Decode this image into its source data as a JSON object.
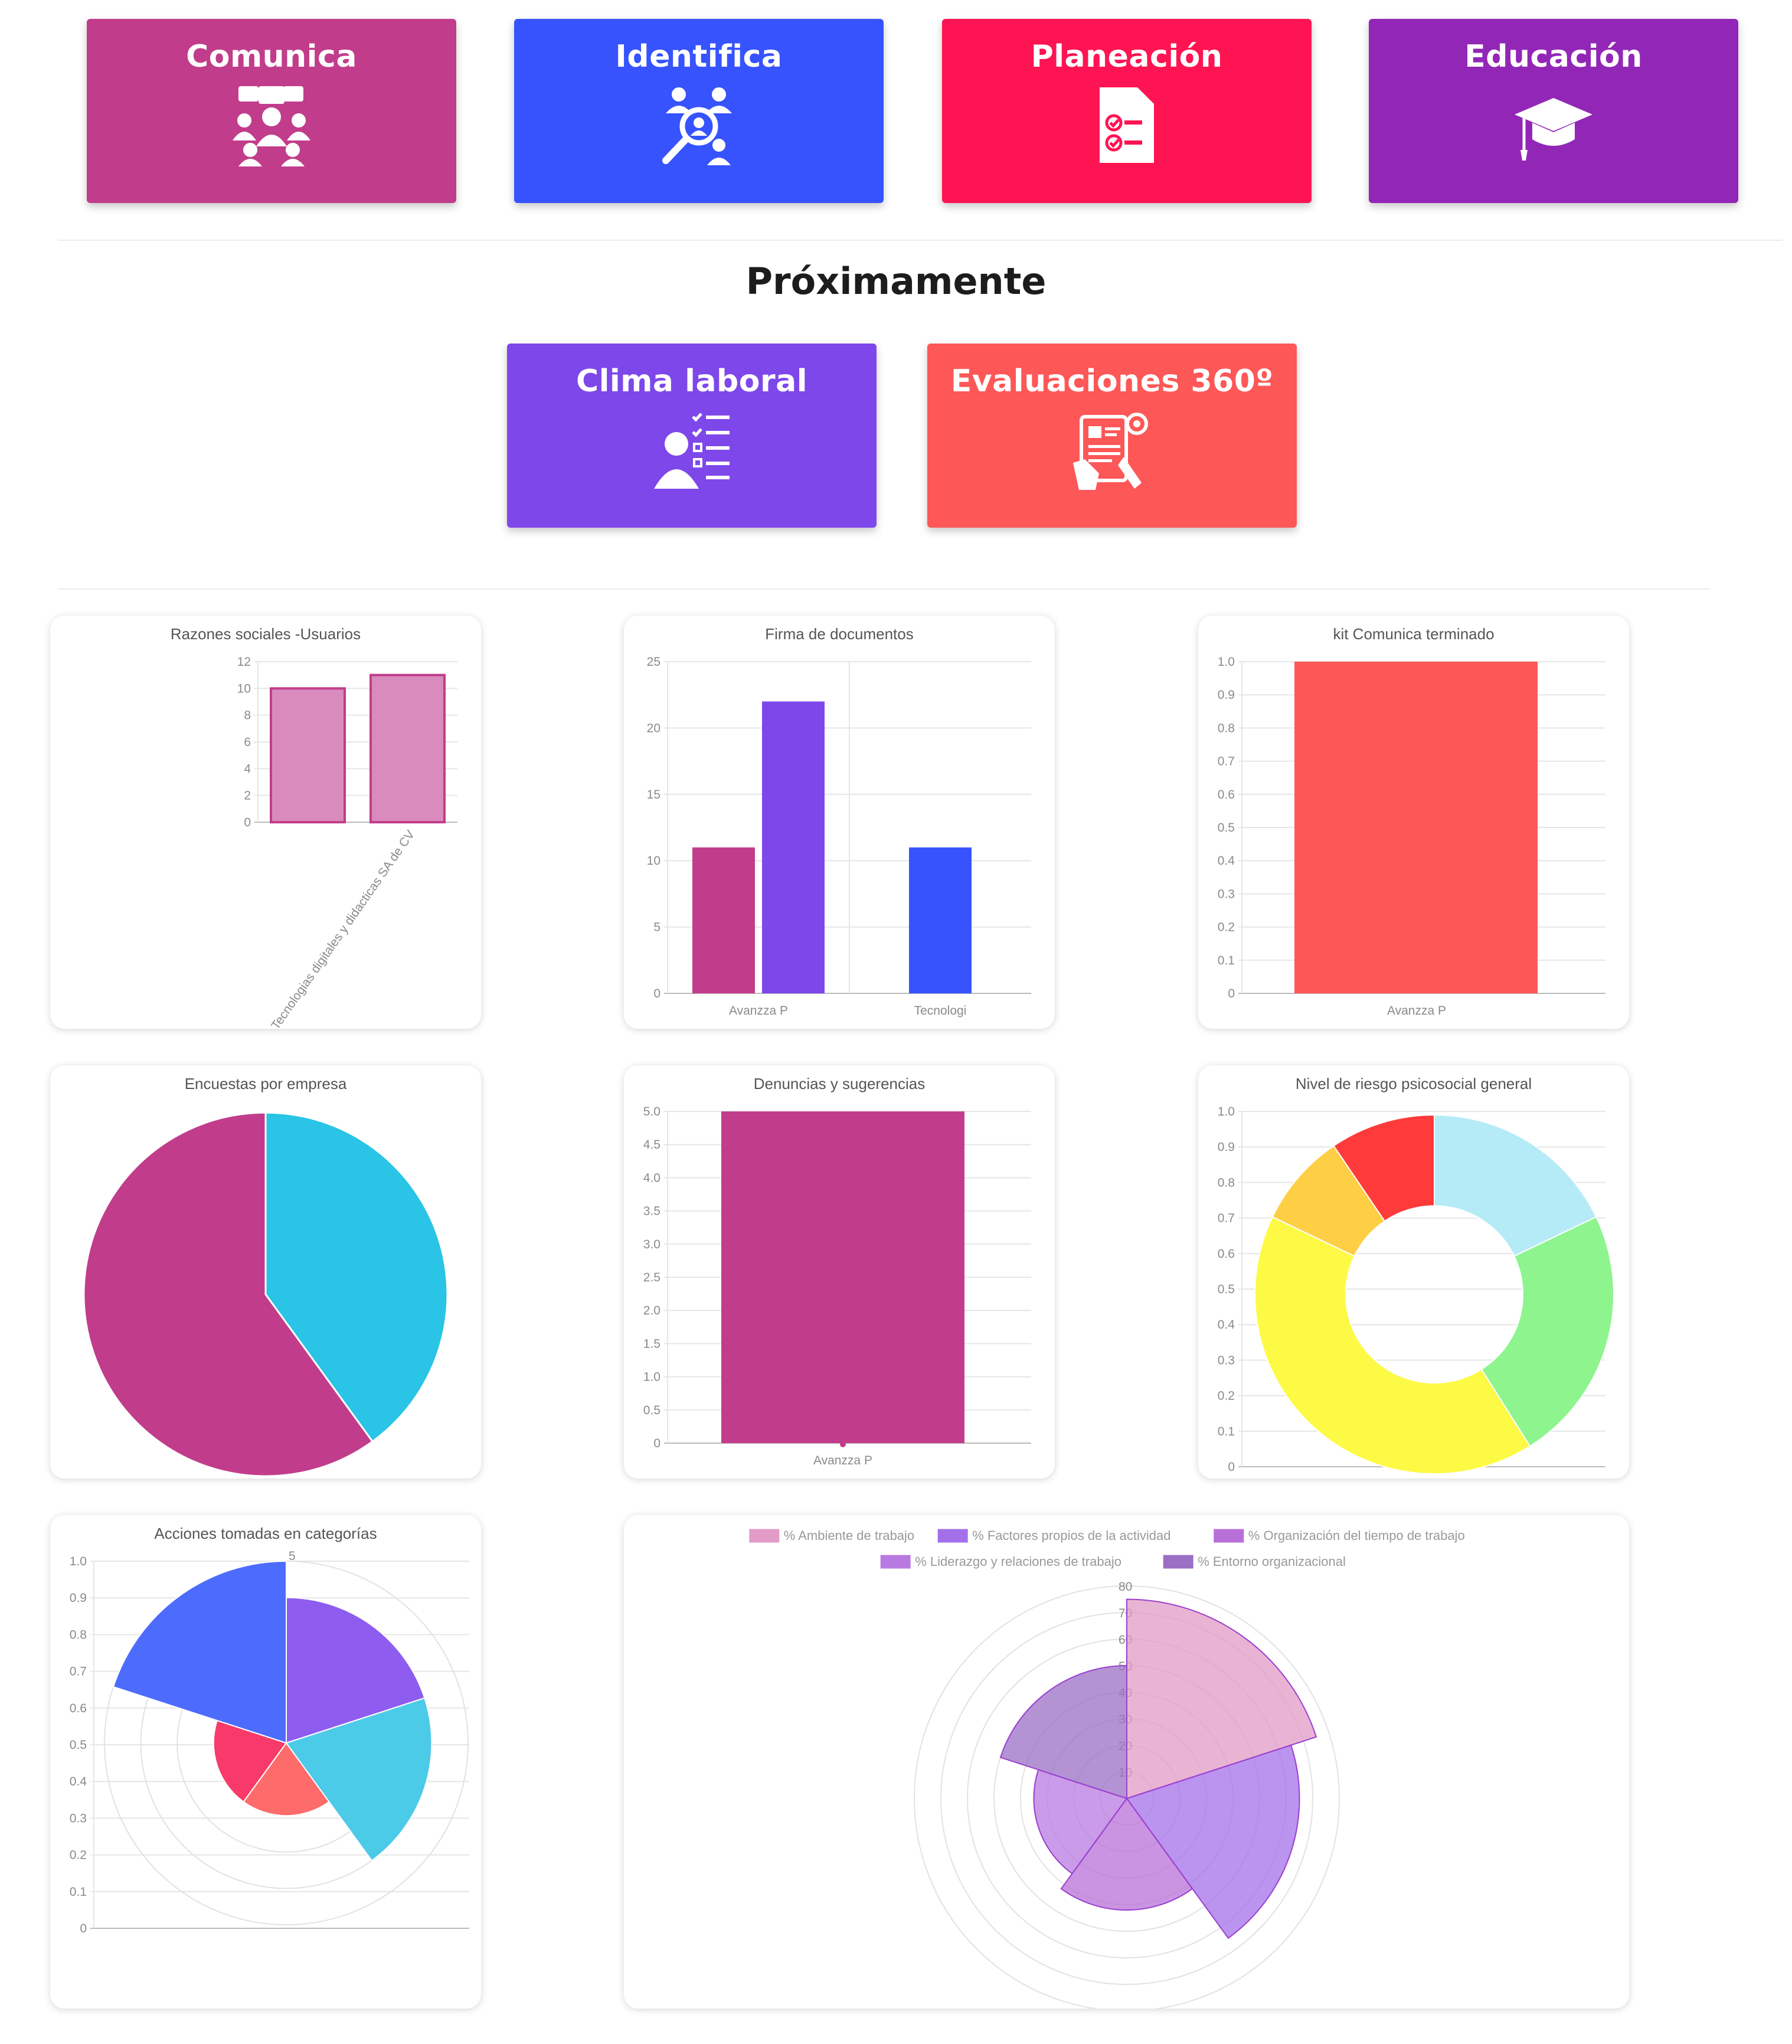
{
  "modules": [
    {
      "title": "Comunica",
      "color": "#c13d8b",
      "icon": "team-meeting-icon"
    },
    {
      "title": "Identifica",
      "color": "#3653fe",
      "icon": "people-search-icon"
    },
    {
      "title": "Planeación",
      "color": "#fe1452",
      "icon": "checklist-document-icon"
    },
    {
      "title": "Educación",
      "color": "#9227b7",
      "icon": "graduation-cap-icon"
    }
  ],
  "coming_soon": {
    "title": "Próximamente",
    "modules": [
      {
        "title": "Clima laboral",
        "color": "#7e47ea",
        "icon": "person-checklist-icon"
      },
      {
        "title": "Evaluaciones 360º",
        "color": "#fd5757",
        "icon": "evaluation-report-icon"
      }
    ]
  },
  "charts": [
    {
      "id": "razones",
      "chart_data": {
        "type": "bar",
        "title": "Razones sociales -Usuarios",
        "categories": [
          "Tecnologias digitales y didacticas SA de CV"
        ],
        "series": [
          {
            "values": [
              10
            ],
            "color": "#d98bbd"
          },
          {
            "values": [
              11
            ],
            "color": "#d98bbd"
          }
        ],
        "ylim": [
          0,
          12
        ],
        "yticks": [
          "0",
          "2",
          "4",
          "6",
          "8",
          "10",
          "12"
        ],
        "grid": true
      }
    },
    {
      "id": "firma",
      "chart_data": {
        "type": "bar",
        "title": "Firma de documentos",
        "categories": [
          "Avanzza P",
          "Tecnologi"
        ],
        "series": [
          {
            "values": [
              11,
              0
            ],
            "color": "#c13d8b"
          },
          {
            "values": [
              22,
              0
            ],
            "color": "#7e47ea"
          },
          {
            "values": [
              0,
              11
            ],
            "color": "#3653fe"
          }
        ],
        "ylim": [
          0,
          25
        ],
        "yticks": [
          "0",
          "5",
          "10",
          "15",
          "20",
          "25"
        ],
        "grid": true
      }
    },
    {
      "id": "kit",
      "chart_data": {
        "type": "bar",
        "title": "kit Comunica terminado",
        "categories": [
          "Avanzza P"
        ],
        "values": [
          1.0
        ],
        "color": "#fd5757",
        "ylim": [
          0,
          1.0
        ],
        "yticks": [
          "0",
          "0.1",
          "0.2",
          "0.3",
          "0.4",
          "0.5",
          "0.6",
          "0.7",
          "0.8",
          "0.9",
          "1.0"
        ],
        "grid": true
      }
    },
    {
      "id": "encuestas",
      "chart_data": {
        "type": "pie",
        "title": "Encuestas por  empresa",
        "values": [
          0.4,
          0.6
        ],
        "colors": [
          "#29c4e6",
          "#c13d8b"
        ]
      }
    },
    {
      "id": "denuncias",
      "chart_data": {
        "type": "bar",
        "title": "Denuncias y sugerencias",
        "categories": [
          "Avanzza P"
        ],
        "values": [
          5.0
        ],
        "color": "#c13d8b",
        "ylim": [
          0,
          5.0
        ],
        "yticks": [
          "0",
          "0.5",
          "1.0",
          "1.5",
          "2.0",
          "2.5",
          "3.0",
          "3.5",
          "4.0",
          "4.5",
          "5.0"
        ],
        "grid": true
      }
    },
    {
      "id": "riesgo",
      "chart_data": {
        "type": "doughnut",
        "title": "Nivel de riesgo psicosocial general",
        "values": [
          0.17,
          0.22,
          0.39,
          0.08,
          0.09
        ],
        "colors": [
          "#b5ebf7",
          "#8ef48e",
          "#fdfa45",
          "#fecf45",
          "#fe3a3a"
        ],
        "yticks": [
          "0",
          "0.1",
          "0.2",
          "0.3",
          "0.4",
          "0.5",
          "0.6",
          "0.7",
          "0.8",
          "0.9",
          "1.0"
        ],
        "grid": true
      }
    },
    {
      "id": "acciones",
      "chart_data": {
        "type": "polarArea",
        "title": "Acciones tomadas en categorías",
        "values": [
          4,
          4,
          2,
          2,
          5
        ],
        "rmax": 5,
        "colors": [
          "#8e5cef",
          "#4ccbe8",
          "#fe6b6b",
          "#f83a6a",
          "#4d6bfc"
        ],
        "rtick": "5",
        "yticks": [
          "0",
          "0.1",
          "0.2",
          "0.3",
          "0.4",
          "0.5",
          "0.6",
          "0.7",
          "0.8",
          "0.9",
          "1.0"
        ],
        "grid": true
      }
    },
    {
      "id": "factores",
      "chart_data": {
        "type": "polarArea",
        "legend": [
          "% Ambiente de trabajo",
          "% Factores propios de la actividad",
          "% Organización del tiempo de trabajo",
          "% Liderazgo y relaciones de trabajo",
          "% Entorno organizacional"
        ],
        "values": [
          75,
          65,
          42,
          35,
          50
        ],
        "rmax": 80,
        "colors": [
          "#e29bc6",
          "#a470ea",
          "#b870d8",
          "#b87ae0",
          "#9a6fc4"
        ],
        "rticks": [
          "10",
          "20",
          "30",
          "40",
          "50",
          "60",
          "70",
          "80"
        ],
        "legend_position": "top",
        "grid": true
      }
    }
  ]
}
